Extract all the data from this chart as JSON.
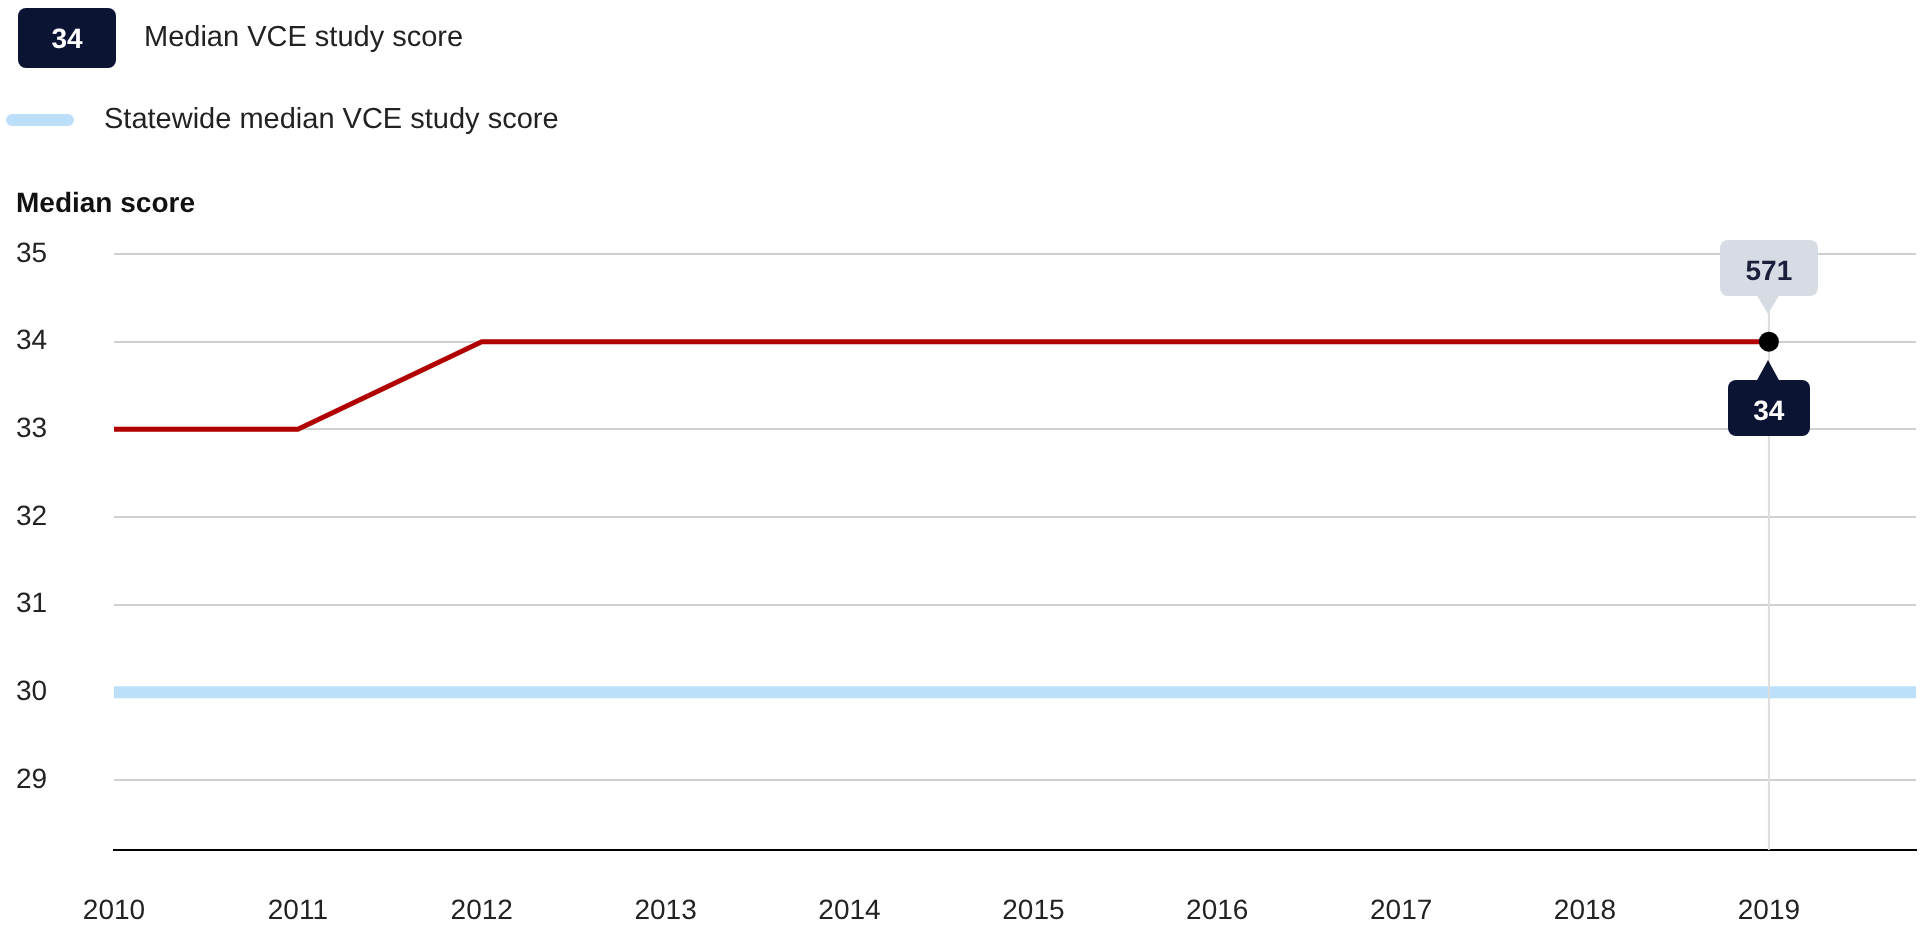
{
  "chart_data": {
    "type": "line",
    "ylabel": "Median score",
    "x": [
      2010,
      2011,
      2012,
      2013,
      2014,
      2015,
      2016,
      2017,
      2018,
      2019
    ],
    "xlim": [
      2010,
      2019.8
    ],
    "xticks": [
      2010,
      2011,
      2012,
      2013,
      2014,
      2015,
      2016,
      2017,
      2018,
      2019
    ],
    "ylim": [
      28.2,
      35
    ],
    "yticks": [
      29,
      30,
      31,
      32,
      33,
      34,
      35
    ],
    "grid": "y",
    "legend": "top left",
    "marker": "none",
    "series": [
      {
        "name": "Median VCE study score",
        "color": "#b00000",
        "values": [
          33,
          33,
          34,
          34,
          34,
          34,
          34,
          34,
          34,
          34
        ],
        "value_labels": [
          null,
          null,
          null,
          null,
          null,
          null,
          null,
          null,
          null,
          "34"
        ]
      }
    ],
    "ref_lines": [
      {
        "axis": "y",
        "value": 30,
        "label": "Statewide median VCE study score",
        "color": "#bde0fa"
      },
      {
        "axis": "x",
        "value": 2019,
        "color": "#dcdcdc"
      }
    ],
    "annotations": [
      {
        "text": "571",
        "x": 2019,
        "y": 34
      }
    ]
  }
}
